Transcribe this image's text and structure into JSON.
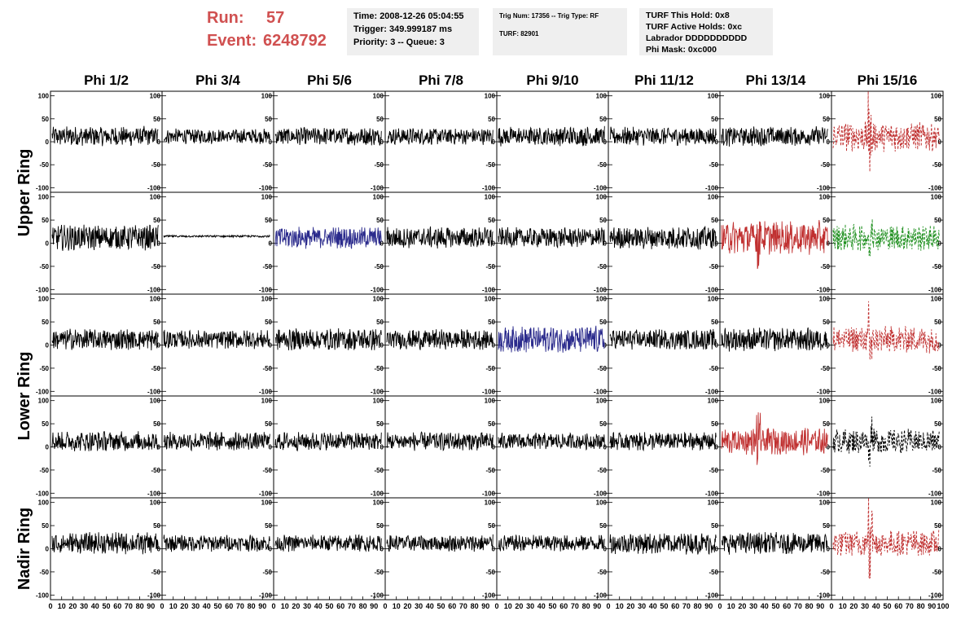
{
  "header": {
    "run_label": "Run:",
    "run_value": "57",
    "event_label": "Event:",
    "event_value": "6248792",
    "time": "Time: 2008-12-26 05:04:55",
    "trigger": "Trigger: 349.999187 ms",
    "priority": "Priority: 3 -- Queue: 3",
    "trig_num": "Trig Num: 17356 -- Trig Type: RF",
    "turf": "TURF: 82901",
    "turf_hold": "TURF This Hold: 0x8",
    "turf_active": "TURF Active Holds: 0xc",
    "labrador": "Labrador DDDDDDDDDD",
    "phi_mask": "Phi Mask: 0xc000"
  },
  "columns": [
    "Phi 1/2",
    "Phi 3/4",
    "Phi 5/6",
    "Phi 7/8",
    "Phi 9/10",
    "Phi 11/12",
    "Phi 13/14",
    "Phi 15/16"
  ],
  "ring_labels": [
    {
      "text": "Upper Ring",
      "rows": [
        0,
        1
      ]
    },
    {
      "text": "Lower Ring",
      "rows": [
        2,
        3
      ]
    },
    {
      "text": "Nadir Ring",
      "rows": [
        4
      ]
    }
  ],
  "colors": {
    "default": "#000000",
    "blue": "#2a2a8c",
    "red": "#c03030",
    "green": "#209020",
    "header_red": "#d05050"
  },
  "chart_data": {
    "type": "line",
    "ylim": [
      -110,
      110
    ],
    "xlim": [
      0,
      100
    ],
    "y_ticks": [
      100,
      50,
      0,
      -50,
      -100
    ],
    "y_tick_labels": [
      "100",
      "50",
      "0",
      "-50",
      "-100"
    ],
    "x_ticks": [
      0,
      10,
      20,
      30,
      40,
      50,
      60,
      70,
      80,
      90
    ],
    "x_tick_labels": [
      "0",
      "10",
      "20",
      "30",
      "40",
      "50",
      "60",
      "70",
      "80",
      "90"
    ],
    "x_last_tick_label": "100",
    "panels": [
      [
        {
          "amp": 12,
          "color": "default",
          "style": "solid"
        },
        {
          "amp": 9,
          "color": "default",
          "style": "solid"
        },
        {
          "amp": 11,
          "color": "default",
          "style": "solid"
        },
        {
          "amp": 10,
          "color": "default",
          "style": "solid"
        },
        {
          "amp": 12,
          "color": "default",
          "style": "solid"
        },
        {
          "amp": 11,
          "color": "default",
          "style": "solid"
        },
        {
          "amp": 12,
          "color": "default",
          "style": "solid"
        },
        {
          "amp": 18,
          "color": "red",
          "style": "dashed",
          "spike": 90
        }
      ],
      [
        {
          "amp": 15,
          "color": "default",
          "style": "solid"
        },
        {
          "amp": 2,
          "color": "default",
          "style": "solid"
        },
        {
          "amp": 13,
          "color": "blue",
          "style": "solid"
        },
        {
          "amp": 13,
          "color": "default",
          "style": "solid"
        },
        {
          "amp": 12,
          "color": "default",
          "style": "solid"
        },
        {
          "amp": 14,
          "color": "default",
          "style": "solid"
        },
        {
          "amp": 20,
          "color": "red",
          "style": "solid",
          "spike": 55
        },
        {
          "amp": 16,
          "color": "green",
          "style": "dashed",
          "spike": 45
        }
      ],
      [
        {
          "amp": 13,
          "color": "default",
          "style": "solid"
        },
        {
          "amp": 11,
          "color": "default",
          "style": "solid"
        },
        {
          "amp": 13,
          "color": "default",
          "style": "solid"
        },
        {
          "amp": 12,
          "color": "default",
          "style": "solid"
        },
        {
          "amp": 16,
          "color": "blue",
          "style": "solid"
        },
        {
          "amp": 12,
          "color": "default",
          "style": "solid"
        },
        {
          "amp": 14,
          "color": "default",
          "style": "solid"
        },
        {
          "amp": 16,
          "color": "red",
          "style": "dashed",
          "spike": 75
        }
      ],
      [
        {
          "amp": 12,
          "color": "default",
          "style": "solid"
        },
        {
          "amp": 11,
          "color": "default",
          "style": "solid"
        },
        {
          "amp": 11,
          "color": "default",
          "style": "solid"
        },
        {
          "amp": 11,
          "color": "default",
          "style": "solid"
        },
        {
          "amp": 10,
          "color": "default",
          "style": "solid"
        },
        {
          "amp": 11,
          "color": "default",
          "style": "solid"
        },
        {
          "amp": 16,
          "color": "red",
          "style": "solid",
          "spike": 65
        },
        {
          "amp": 15,
          "color": "default",
          "style": "dashed",
          "spike": 45
        }
      ],
      [
        {
          "amp": 13,
          "color": "default",
          "style": "solid"
        },
        {
          "amp": 10,
          "color": "default",
          "style": "solid"
        },
        {
          "amp": 10,
          "color": "default",
          "style": "solid"
        },
        {
          "amp": 10,
          "color": "default",
          "style": "solid"
        },
        {
          "amp": 10,
          "color": "default",
          "style": "solid"
        },
        {
          "amp": 13,
          "color": "default",
          "style": "solid"
        },
        {
          "amp": 13,
          "color": "default",
          "style": "solid"
        },
        {
          "amp": 16,
          "color": "red",
          "style": "dashed",
          "spike": 95
        }
      ]
    ]
  }
}
